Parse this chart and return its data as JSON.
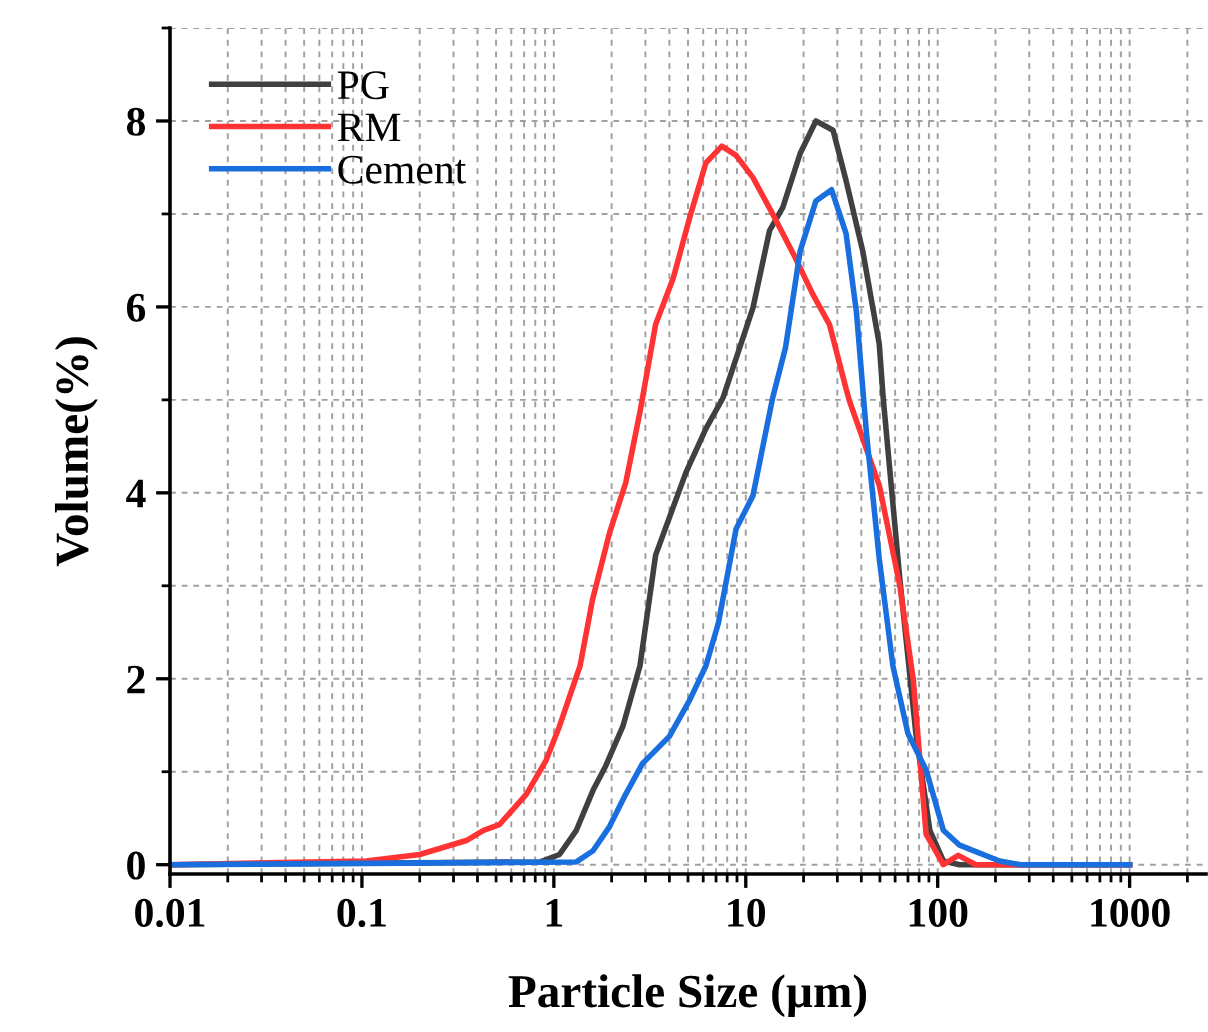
{
  "chart_data": {
    "type": "line",
    "xlabel": "Particle Size (µm)",
    "ylabel": "Volume(%)",
    "log": "x",
    "xlim": [
      0.01,
      2500
    ],
    "xticks": [
      0.01,
      0.1,
      1,
      10,
      100,
      1000
    ],
    "ylim": [
      -0.1,
      9
    ],
    "yticks": [
      0,
      2,
      4,
      6,
      8
    ],
    "grid": true,
    "legend": "top left",
    "line_style": "solid",
    "marker": "none",
    "series": [
      {
        "name": "PG",
        "color": "#404040",
        "x": [
          0.01,
          0.85,
          1.07,
          1.31,
          1.6,
          1.86,
          2.29,
          2.81,
          3.39,
          4.88,
          6.2,
          7.6,
          10.9,
          13.3,
          15.6,
          19.2,
          23.2,
          28.5,
          33.3,
          40.7,
          49.6,
          52,
          63.5,
          77,
          91,
          107,
          130,
          1000
        ],
        "values": [
          0,
          0.03,
          0.11,
          0.37,
          0.8,
          1.06,
          1.49,
          2.14,
          3.33,
          4.22,
          4.69,
          5.02,
          5.99,
          6.82,
          7.07,
          7.65,
          8.0,
          7.9,
          7.36,
          6.6,
          5.6,
          5.02,
          3.07,
          1.41,
          0.37,
          0.04,
          0,
          0
        ]
      },
      {
        "name": "RM",
        "color": "#ff3333",
        "x": [
          0.01,
          0.105,
          0.2,
          0.35,
          0.43,
          0.52,
          0.72,
          0.91,
          1.07,
          1.37,
          1.59,
          1.95,
          2.37,
          2.81,
          3.39,
          4.19,
          5.1,
          6.2,
          7.5,
          8.9,
          10.9,
          13.8,
          17.7,
          22.3,
          27.3,
          33.3,
          34.8,
          49.6,
          63.5,
          74.6,
          87,
          107,
          128,
          158,
          1000
        ],
        "values": [
          0,
          0.04,
          0.11,
          0.26,
          0.37,
          0.43,
          0.76,
          1.12,
          1.49,
          2.14,
          2.85,
          3.57,
          4.11,
          4.87,
          5.81,
          6.31,
          6.96,
          7.55,
          7.73,
          7.63,
          7.39,
          7.0,
          6.57,
          6.14,
          5.81,
          5.12,
          4.98,
          4.08,
          3.0,
          1.99,
          0.33,
          0,
          0.1,
          0,
          0
        ]
      },
      {
        "name": "Cement",
        "color": "#1a6fdf",
        "x": [
          0.01,
          1.31,
          1.6,
          1.95,
          2.37,
          2.9,
          4.0,
          5.1,
          6.2,
          7.2,
          8.9,
          10.9,
          13.8,
          16.1,
          19.2,
          23.2,
          28.0,
          33.3,
          37.7,
          42.6,
          49.6,
          58.4,
          70,
          87,
          107,
          130,
          158,
          210,
          270,
          1000
        ],
        "values": [
          0,
          0.03,
          0.15,
          0.41,
          0.76,
          1.09,
          1.38,
          1.77,
          2.14,
          2.6,
          3.61,
          3.97,
          5.02,
          5.56,
          6.6,
          7.14,
          7.26,
          6.79,
          5.95,
          4.63,
          3.29,
          2.14,
          1.41,
          1.02,
          0.37,
          0.21,
          0.14,
          0.04,
          0,
          0
        ]
      }
    ]
  }
}
